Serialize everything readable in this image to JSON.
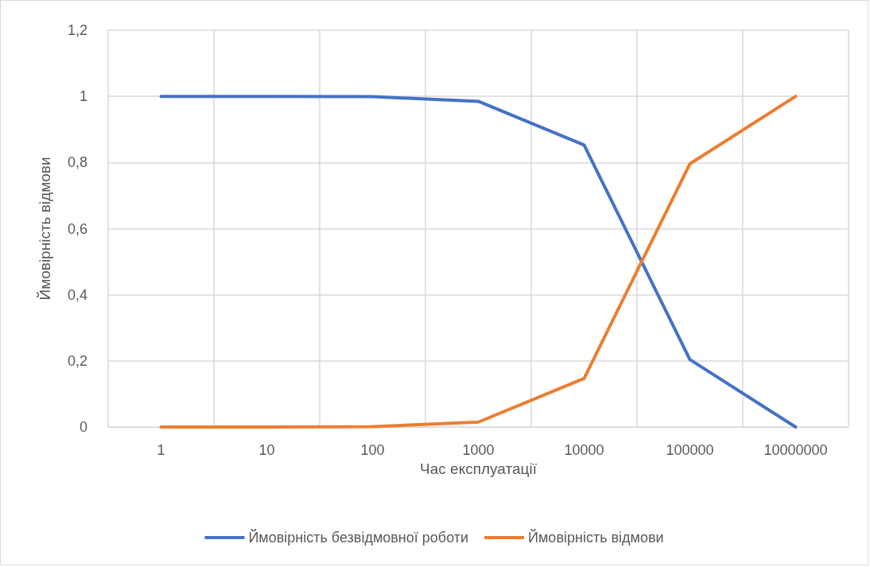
{
  "chart_data": {
    "type": "line",
    "xlabel": "Час експлуатації",
    "ylabel": "Ймовірність відмови",
    "categories": [
      "1",
      "10",
      "100",
      "1000",
      "10000",
      "100000",
      "10000000"
    ],
    "series": [
      {
        "name": "Ймовірність безвідмовної роботи",
        "color": "#4472c4",
        "values": [
          1,
          1,
          0.999,
          0.985,
          0.853,
          0.204,
          0
        ]
      },
      {
        "name": "Ймовірність відмови",
        "color": "#ed7d31",
        "values": [
          0,
          0,
          0.001,
          0.015,
          0.147,
          0.796,
          1
        ]
      }
    ],
    "ylim": [
      0,
      1.2
    ],
    "yticks": [
      {
        "value": 0,
        "label": "0"
      },
      {
        "value": 0.2,
        "label": "0,2"
      },
      {
        "value": 0.4,
        "label": "0,4"
      },
      {
        "value": 0.6,
        "label": "0,6"
      },
      {
        "value": 0.8,
        "label": "0,8"
      },
      {
        "value": 1,
        "label": "1"
      },
      {
        "value": 1.2,
        "label": "1,2"
      }
    ],
    "grid": true,
    "legend": "bottom",
    "marker": "none",
    "line_style": "solid"
  }
}
